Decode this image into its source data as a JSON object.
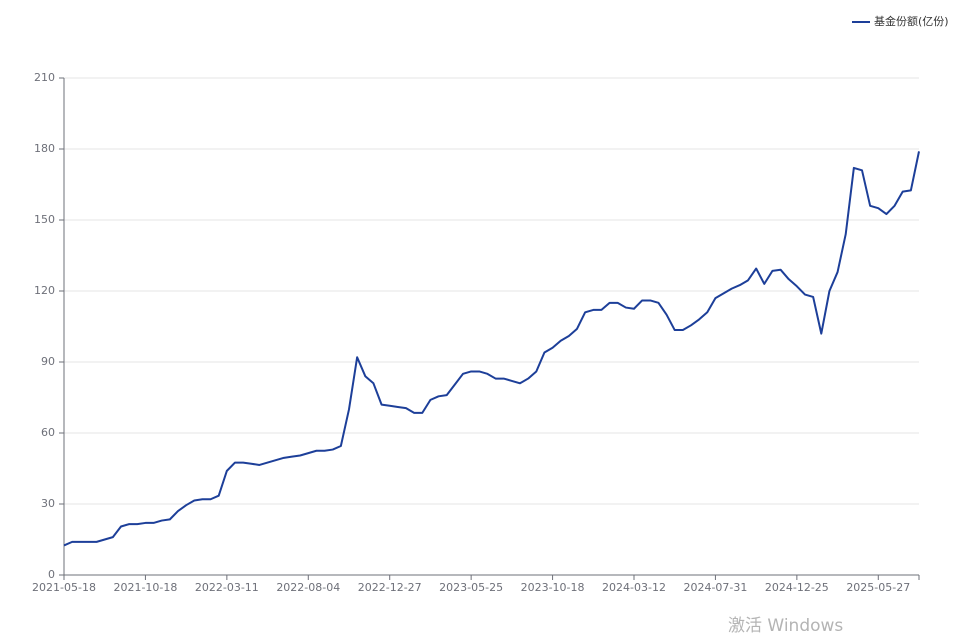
{
  "chart_data": {
    "type": "line",
    "legend_position": "top-right",
    "grid": true,
    "categories": [
      "2021-05-18",
      null,
      null,
      null,
      null,
      null,
      null,
      null,
      null,
      null,
      "2021-10-18",
      null,
      null,
      null,
      null,
      null,
      null,
      null,
      null,
      null,
      "2022-03-11",
      null,
      null,
      null,
      null,
      null,
      null,
      null,
      null,
      null,
      "2022-08-04",
      null,
      null,
      null,
      null,
      null,
      null,
      null,
      null,
      null,
      "2022-12-27",
      null,
      null,
      null,
      null,
      null,
      null,
      null,
      null,
      null,
      "2023-05-25",
      null,
      null,
      null,
      null,
      null,
      null,
      null,
      null,
      null,
      "2023-10-18",
      null,
      null,
      null,
      null,
      null,
      null,
      null,
      null,
      null,
      "2024-03-12",
      null,
      null,
      null,
      null,
      null,
      null,
      null,
      null,
      null,
      "2024-07-31",
      null,
      null,
      null,
      null,
      null,
      null,
      null,
      null,
      null,
      "2024-12-25",
      null,
      null,
      null,
      null,
      null,
      null,
      null,
      null,
      null,
      "2025-05-27",
      null,
      null,
      null,
      null,
      null
    ],
    "series": [
      {
        "name": "基金份额(亿份)",
        "color": "#1d3f99",
        "values": [
          12.5,
          14,
          14,
          14,
          14,
          15,
          16,
          20.5,
          21.5,
          21.5,
          22,
          22,
          23,
          23.5,
          27,
          29.5,
          31.5,
          32,
          32,
          33.5,
          44,
          47.5,
          47.5,
          47,
          46.5,
          47.5,
          48.5,
          49.5,
          50,
          50.5,
          51.5,
          52.5,
          52.5,
          53,
          54.5,
          70,
          92,
          84,
          81,
          72,
          71.5,
          71,
          70.5,
          68.5,
          68.5,
          74,
          75.5,
          76,
          80.5,
          85,
          86,
          86,
          85,
          83,
          83,
          82,
          81,
          83,
          86,
          94,
          96,
          99,
          101,
          104,
          111,
          112,
          112,
          115,
          115,
          113,
          112.5,
          116,
          116,
          115,
          110,
          103.5,
          103.5,
          105.5,
          108,
          111,
          117,
          119,
          121,
          122.5,
          124.5,
          129.5,
          123,
          128.5,
          129,
          125,
          122,
          118.5,
          117.5,
          102,
          120,
          128,
          144,
          172,
          171,
          156,
          155,
          152.5,
          156,
          162,
          162.5,
          179
        ]
      }
    ],
    "ylim": [
      0,
      210
    ],
    "yticks": [
      0,
      30,
      60,
      90,
      120,
      150,
      180,
      210
    ]
  },
  "watermark": "激活 Windows"
}
